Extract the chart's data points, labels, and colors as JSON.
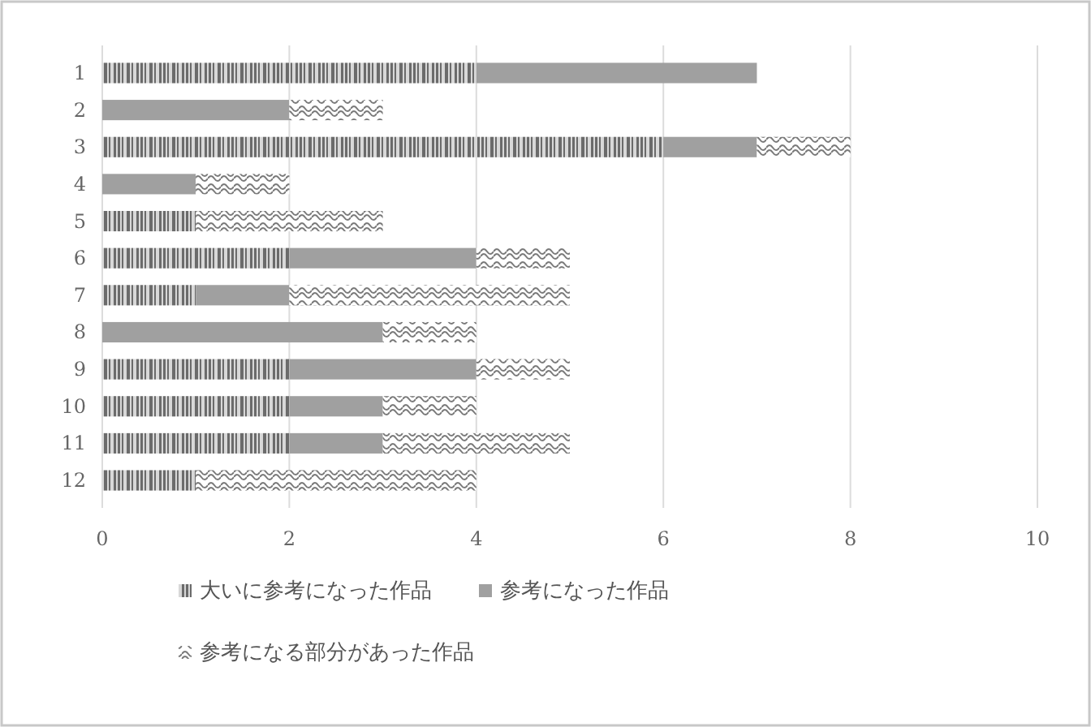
{
  "chart_data": {
    "type": "bar",
    "orientation": "horizontal",
    "stacked": true,
    "categories": [
      "1",
      "2",
      "3",
      "4",
      "5",
      "6",
      "7",
      "8",
      "9",
      "10",
      "11",
      "12"
    ],
    "series": [
      {
        "name": "大いに参考になった作品",
        "color": "#6b6b6b",
        "values": [
          4,
          0,
          6,
          0,
          1,
          2,
          1,
          0,
          2,
          2,
          2,
          1
        ]
      },
      {
        "name": "参考になった作品",
        "color": "#a0a0a0",
        "values": [
          3,
          2,
          1,
          1,
          0,
          2,
          1,
          3,
          2,
          1,
          1,
          0
        ]
      },
      {
        "name": "参考になる部分があった作品",
        "color": "#7a7a7a",
        "values": [
          0,
          1,
          1,
          1,
          2,
          1,
          3,
          1,
          1,
          1,
          2,
          3
        ]
      }
    ],
    "xlim": [
      0,
      10
    ],
    "xticks": [
      0,
      2,
      4,
      6,
      8,
      10
    ],
    "grid": "x",
    "legend": "bottom"
  }
}
